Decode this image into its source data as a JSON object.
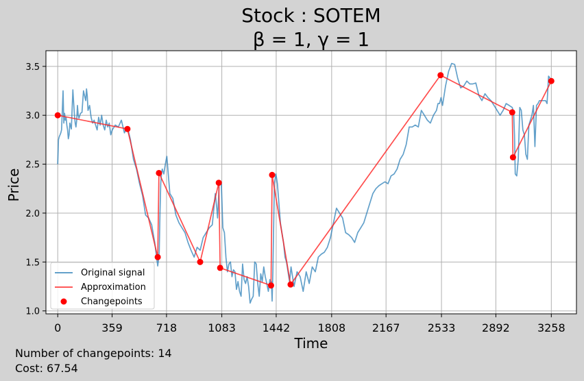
{
  "chart_data": {
    "type": "line",
    "title": "Stock : SOTEM",
    "subtitle": "β = 1, γ = 1",
    "xlabel": "Time",
    "ylabel": "Price",
    "xlim": [
      -78,
      3424
    ],
    "ylim": [
      0.97,
      3.66
    ],
    "xticks": [
      0,
      359,
      718,
      1083,
      1442,
      1808,
      2167,
      2533,
      2892,
      3258
    ],
    "yticks": [
      1.0,
      1.5,
      2.0,
      2.5,
      3.0,
      3.5
    ],
    "ytick_labels": [
      "1.0",
      "1.5",
      "2.0",
      "2.5",
      "3.0",
      "3.5"
    ],
    "grid": true,
    "legend_position": "lower-left",
    "legend": [
      "Original signal",
      "Approximation",
      "Changepoints"
    ],
    "series": [
      {
        "name": "Original signal",
        "color": "#1f77b4",
        "x": [
          0,
          5,
          10,
          15,
          20,
          25,
          30,
          35,
          40,
          45,
          50,
          55,
          60,
          65,
          70,
          75,
          80,
          90,
          100,
          110,
          115,
          120,
          125,
          130,
          135,
          140,
          150,
          160,
          170,
          180,
          185,
          190,
          195,
          200,
          210,
          220,
          230,
          240,
          250,
          260,
          270,
          280,
          290,
          300,
          310,
          320,
          330,
          340,
          350,
          360,
          380,
          400,
          420,
          440,
          460,
          480,
          500,
          520,
          540,
          560,
          580,
          600,
          620,
          640,
          650,
          660,
          665,
          670,
          675,
          680,
          685,
          690,
          700,
          710,
          720,
          740,
          760,
          780,
          800,
          820,
          840,
          860,
          880,
          900,
          920,
          940,
          960,
          980,
          1000,
          1020,
          1040,
          1050,
          1055,
          1060,
          1065,
          1070,
          1080,
          1090,
          1100,
          1110,
          1120,
          1130,
          1140,
          1150,
          1160,
          1170,
          1180,
          1190,
          1200,
          1210,
          1220,
          1230,
          1240,
          1250,
          1260,
          1270,
          1280,
          1290,
          1300,
          1310,
          1320,
          1330,
          1340,
          1350,
          1360,
          1370,
          1380,
          1390,
          1400,
          1405,
          1410,
          1415,
          1420,
          1430,
          1440,
          1450,
          1460,
          1470,
          1480,
          1490,
          1500,
          1510,
          1520,
          1530,
          1540,
          1550,
          1560,
          1580,
          1600,
          1620,
          1640,
          1660,
          1680,
          1700,
          1720,
          1740,
          1760,
          1780,
          1800,
          1820,
          1840,
          1860,
          1880,
          1900,
          1920,
          1940,
          1960,
          1980,
          2000,
          2020,
          2040,
          2060,
          2080,
          2100,
          2120,
          2140,
          2160,
          2180,
          2200,
          2220,
          2240,
          2260,
          2280,
          2300,
          2320,
          2340,
          2360,
          2380,
          2400,
          2420,
          2440,
          2460,
          2480,
          2500,
          2510,
          2520,
          2530,
          2540,
          2550,
          2560,
          2580,
          2600,
          2620,
          2640,
          2660,
          2680,
          2700,
          2720,
          2740,
          2760,
          2780,
          2800,
          2820,
          2840,
          2860,
          2880,
          2900,
          2920,
          2940,
          2960,
          2980,
          3000,
          3005,
          3010,
          3015,
          3020,
          3030,
          3040,
          3050,
          3060,
          3070,
          3080,
          3090,
          3100,
          3110,
          3120,
          3130,
          3140,
          3150,
          3160,
          3170,
          3180,
          3190,
          3200,
          3210,
          3220,
          3230,
          3240,
          3250,
          3258
        ],
        "y": [
          2.5,
          2.75,
          2.78,
          2.8,
          2.82,
          2.85,
          3.05,
          3.25,
          2.92,
          3.02,
          2.95,
          2.98,
          2.9,
          2.85,
          2.76,
          2.8,
          2.92,
          2.86,
          3.26,
          3.0,
          2.92,
          2.88,
          2.95,
          3.1,
          3.0,
          2.97,
          3.02,
          3.03,
          3.25,
          3.18,
          3.15,
          3.27,
          3.2,
          3.05,
          3.1,
          2.98,
          2.92,
          2.95,
          2.9,
          2.85,
          2.98,
          2.9,
          3.0,
          2.9,
          2.85,
          2.95,
          2.88,
          2.92,
          2.8,
          2.85,
          2.9,
          2.88,
          2.95,
          2.82,
          2.88,
          2.75,
          2.55,
          2.45,
          2.3,
          2.18,
          1.98,
          1.95,
          1.88,
          1.7,
          1.58,
          1.46,
          1.52,
          1.6,
          2.0,
          2.3,
          2.4,
          2.45,
          2.4,
          2.5,
          2.58,
          2.2,
          2.15,
          1.98,
          1.9,
          1.85,
          1.8,
          1.7,
          1.62,
          1.55,
          1.65,
          1.62,
          1.75,
          1.8,
          1.85,
          1.88,
          2.2,
          2.05,
          1.95,
          2.1,
          2.28,
          2.32,
          2.3,
          1.85,
          1.8,
          1.55,
          1.4,
          1.48,
          1.5,
          1.35,
          1.42,
          1.4,
          1.22,
          1.3,
          1.2,
          1.15,
          1.48,
          1.32,
          1.28,
          1.35,
          1.25,
          1.08,
          1.12,
          1.15,
          1.5,
          1.48,
          1.28,
          1.15,
          1.38,
          1.3,
          1.45,
          1.35,
          1.28,
          1.2,
          1.32,
          1.25,
          1.3,
          1.1,
          1.4,
          2.3,
          2.4,
          2.3,
          2.1,
          1.9,
          1.8,
          1.7,
          1.55,
          1.5,
          1.4,
          1.3,
          1.45,
          1.35,
          1.25,
          1.4,
          1.35,
          1.2,
          1.4,
          1.28,
          1.45,
          1.4,
          1.55,
          1.58,
          1.6,
          1.65,
          1.75,
          1.9,
          2.05,
          2.0,
          1.95,
          1.8,
          1.78,
          1.75,
          1.7,
          1.8,
          1.85,
          1.9,
          2.0,
          2.1,
          2.2,
          2.25,
          2.28,
          2.3,
          2.32,
          2.3,
          2.38,
          2.4,
          2.45,
          2.55,
          2.6,
          2.7,
          2.88,
          2.88,
          2.9,
          2.88,
          3.05,
          3.0,
          2.95,
          2.92,
          3.0,
          3.05,
          3.12,
          3.12,
          3.18,
          3.1,
          3.2,
          3.3,
          3.45,
          3.53,
          3.52,
          3.38,
          3.28,
          3.3,
          3.35,
          3.32,
          3.32,
          3.33,
          3.2,
          3.15,
          3.22,
          3.18,
          3.15,
          3.1,
          3.05,
          3.0,
          3.05,
          3.12,
          3.1,
          3.08,
          3.05,
          3.0,
          2.8,
          2.4,
          2.38,
          2.55,
          3.08,
          3.05,
          2.85,
          2.8,
          2.6,
          2.55,
          2.9,
          2.95,
          3.0,
          3.1,
          2.68,
          3.1,
          3.12,
          3.15,
          3.15,
          3.15,
          3.15,
          3.15,
          3.12,
          3.4,
          3.38,
          3.35
        ]
      },
      {
        "name": "Approximation",
        "color": "#ff2020",
        "x": [
          0,
          460,
          660,
          668,
          940,
          1063,
          1072,
          1408,
          1415,
          1537,
          2527,
          3000,
          3005,
          3258
        ],
        "y": [
          3.0,
          2.86,
          1.55,
          2.41,
          1.5,
          2.31,
          1.44,
          1.26,
          2.39,
          1.27,
          3.41,
          3.03,
          2.57,
          3.35
        ]
      },
      {
        "name": "Changepoints",
        "color": "#ff0000",
        "x": [
          0,
          460,
          660,
          668,
          940,
          1063,
          1072,
          1408,
          1415,
          1537,
          2527,
          3000,
          3005,
          3258
        ],
        "y": [
          3.0,
          2.86,
          1.55,
          2.41,
          1.5,
          2.31,
          1.44,
          1.26,
          2.39,
          1.27,
          3.41,
          3.03,
          2.57,
          3.35
        ]
      }
    ]
  },
  "footer": {
    "changepoints_text": "Number of changepoints: 14",
    "cost_text": "Cost: 67.54"
  }
}
